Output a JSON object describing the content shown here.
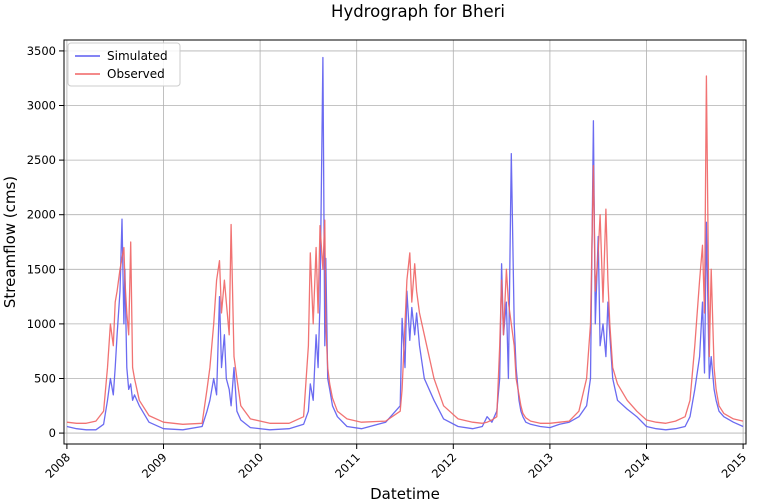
{
  "chart_data": {
    "type": "line",
    "title": "Hydrograph for Bheri",
    "xlabel": "Datetime",
    "ylabel": "Streamflow (cms)",
    "x_ticks": [
      "2008",
      "2009",
      "2010",
      "2011",
      "2012",
      "2013",
      "2014",
      "2015"
    ],
    "y_ticks": [
      "0",
      "500",
      "1000",
      "1500",
      "2000",
      "2500",
      "3000",
      "3500"
    ],
    "xlim": [
      2007.97,
      2015.03
    ],
    "ylim": [
      -100,
      3600
    ],
    "grid": true,
    "legend_position": "top-left",
    "series": [
      {
        "name": "Simulated",
        "color": "#5b5bf0",
        "x": [
          2008.0,
          2008.1,
          2008.2,
          2008.3,
          2008.38,
          2008.42,
          2008.45,
          2008.48,
          2008.5,
          2008.52,
          2008.55,
          2008.57,
          2008.59,
          2008.6,
          2008.62,
          2008.64,
          2008.66,
          2008.68,
          2008.7,
          2008.75,
          2008.85,
          2009.0,
          2009.2,
          2009.4,
          2009.45,
          2009.48,
          2009.52,
          2009.55,
          2009.58,
          2009.6,
          2009.63,
          2009.65,
          2009.68,
          2009.7,
          2009.73,
          2009.76,
          2009.8,
          2009.9,
          2010.1,
          2010.3,
          2010.45,
          2010.5,
          2010.52,
          2010.55,
          2010.58,
          2010.6,
          2010.62,
          2010.65,
          2010.67,
          2010.68,
          2010.7,
          2010.72,
          2010.75,
          2010.8,
          2010.9,
          2011.05,
          2011.3,
          2011.45,
          2011.47,
          2011.5,
          2011.52,
          2011.55,
          2011.57,
          2011.6,
          2011.62,
          2011.65,
          2011.7,
          2011.8,
          2011.9,
          2012.05,
          2012.2,
          2012.3,
          2012.35,
          2012.4,
          2012.45,
          2012.48,
          2012.5,
          2012.52,
          2012.55,
          2012.57,
          2012.6,
          2012.63,
          2012.65,
          2012.68,
          2012.7,
          2012.72,
          2012.75,
          2012.8,
          2012.9,
          2013.0,
          2013.1,
          2013.2,
          2013.3,
          2013.38,
          2013.42,
          2013.45,
          2013.47,
          2013.5,
          2013.52,
          2013.55,
          2013.58,
          2013.6,
          2013.62,
          2013.65,
          2013.7,
          2013.8,
          2013.9,
          2014.0,
          2014.1,
          2014.2,
          2014.3,
          2014.4,
          2014.45,
          2014.5,
          2014.55,
          2014.58,
          2014.6,
          2014.62,
          2014.65,
          2014.67,
          2014.7,
          2014.72,
          2014.75,
          2014.8,
          2014.9,
          2015.0
        ],
        "y": [
          60,
          40,
          30,
          30,
          80,
          300,
          500,
          350,
          600,
          900,
          1300,
          1960,
          1000,
          1500,
          600,
          400,
          450,
          300,
          350,
          250,
          100,
          40,
          30,
          60,
          200,
          300,
          500,
          350,
          1250,
          600,
          900,
          500,
          400,
          250,
          600,
          200,
          120,
          50,
          30,
          40,
          80,
          200,
          450,
          300,
          900,
          600,
          1200,
          3440,
          800,
          1600,
          500,
          400,
          250,
          150,
          60,
          40,
          100,
          250,
          1050,
          600,
          1300,
          850,
          1150,
          900,
          1100,
          800,
          500,
          300,
          130,
          60,
          40,
          60,
          150,
          100,
          200,
          500,
          1550,
          900,
          1200,
          500,
          2560,
          1000,
          600,
          300,
          200,
          150,
          100,
          80,
          60,
          50,
          80,
          100,
          150,
          250,
          500,
          2860,
          1000,
          1800,
          800,
          1000,
          700,
          1200,
          900,
          500,
          300,
          220,
          150,
          60,
          40,
          30,
          40,
          60,
          150,
          400,
          700,
          1200,
          550,
          1930,
          500,
          700,
          400,
          300,
          200,
          150,
          100,
          60
        ]
      },
      {
        "name": "Observed",
        "color": "#f06464",
        "x": [
          2008.0,
          2008.1,
          2008.2,
          2008.3,
          2008.38,
          2008.42,
          2008.45,
          2008.48,
          2008.5,
          2008.52,
          2008.55,
          2008.57,
          2008.59,
          2008.6,
          2008.62,
          2008.64,
          2008.66,
          2008.68,
          2008.7,
          2008.75,
          2008.85,
          2009.0,
          2009.2,
          2009.4,
          2009.45,
          2009.48,
          2009.52,
          2009.55,
          2009.58,
          2009.6,
          2009.63,
          2009.65,
          2009.68,
          2009.7,
          2009.73,
          2009.76,
          2009.8,
          2009.9,
          2010.1,
          2010.3,
          2010.45,
          2010.5,
          2010.52,
          2010.55,
          2010.58,
          2010.6,
          2010.62,
          2010.65,
          2010.67,
          2010.68,
          2010.7,
          2010.72,
          2010.75,
          2010.8,
          2010.9,
          2011.05,
          2011.3,
          2011.45,
          2011.47,
          2011.5,
          2011.52,
          2011.55,
          2011.57,
          2011.6,
          2011.62,
          2011.65,
          2011.7,
          2011.8,
          2011.9,
          2012.05,
          2012.2,
          2012.3,
          2012.35,
          2012.4,
          2012.45,
          2012.48,
          2012.5,
          2012.52,
          2012.55,
          2012.57,
          2012.6,
          2012.63,
          2012.65,
          2012.68,
          2012.7,
          2012.72,
          2012.75,
          2012.8,
          2012.9,
          2013.0,
          2013.1,
          2013.2,
          2013.3,
          2013.38,
          2013.42,
          2013.45,
          2013.47,
          2013.5,
          2013.52,
          2013.55,
          2013.58,
          2013.6,
          2013.62,
          2013.65,
          2013.7,
          2013.8,
          2013.9,
          2014.0,
          2014.1,
          2014.2,
          2014.3,
          2014.4,
          2014.45,
          2014.5,
          2014.55,
          2014.58,
          2014.6,
          2014.62,
          2014.65,
          2014.67,
          2014.7,
          2014.72,
          2014.75,
          2014.8,
          2014.9,
          2015.0
        ],
        "y": [
          100,
          90,
          90,
          110,
          200,
          600,
          1000,
          800,
          1200,
          1300,
          1500,
          1600,
          1700,
          1400,
          1100,
          900,
          1750,
          600,
          500,
          300,
          160,
          100,
          80,
          90,
          400,
          600,
          1000,
          1400,
          1580,
          1100,
          1400,
          1200,
          900,
          1910,
          700,
          500,
          250,
          130,
          90,
          90,
          150,
          800,
          1650,
          1000,
          1700,
          1100,
          1900,
          1500,
          1950,
          1000,
          600,
          450,
          320,
          200,
          130,
          100,
          110,
          200,
          400,
          1000,
          1400,
          1650,
          1200,
          1550,
          1300,
          1100,
          900,
          500,
          250,
          130,
          100,
          90,
          100,
          120,
          150,
          800,
          1400,
          900,
          1500,
          1200,
          1000,
          800,
          500,
          350,
          250,
          180,
          140,
          110,
          90,
          90,
          100,
          110,
          200,
          500,
          1000,
          2450,
          1300,
          1650,
          2000,
          1200,
          2050,
          1400,
          1000,
          600,
          450,
          300,
          200,
          120,
          100,
          90,
          110,
          150,
          300,
          800,
          1400,
          1720,
          1100,
          3270,
          700,
          1500,
          600,
          400,
          250,
          180,
          130,
          110
        ]
      }
    ]
  }
}
